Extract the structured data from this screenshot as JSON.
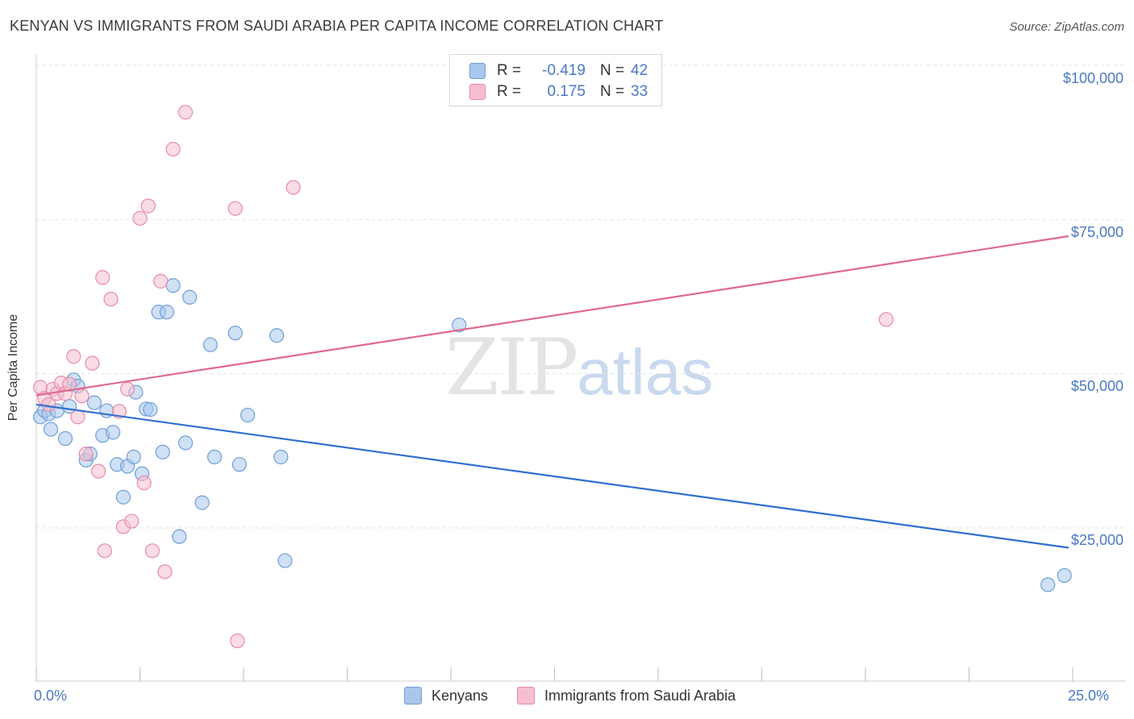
{
  "title": "KENYAN VS IMMIGRANTS FROM SAUDI ARABIA PER CAPITA INCOME CORRELATION CHART",
  "source": "Source: ZipAtlas.com",
  "watermark": {
    "zip": "ZIP",
    "atlas": "atlas"
  },
  "legend_top": [
    {
      "r_label": "R =",
      "r_value": "-0.419",
      "n_label": "N =",
      "n_value": "42",
      "color": "#a9c6ec",
      "border": "#6f9fd8"
    },
    {
      "r_label": "R =",
      "r_value": "0.175",
      "n_label": "N =",
      "n_value": "33",
      "color": "#f6bfd0",
      "border": "#e98aa9"
    }
  ],
  "legend_bottom": [
    {
      "label": "Kenyans",
      "color": "#a9c6ec",
      "border": "#6f9fd8"
    },
    {
      "label": "Immigrants from Saudi Arabia",
      "color": "#f6bfd0",
      "border": "#e98aa9"
    }
  ],
  "chart_data": {
    "type": "scatter",
    "title": "KENYAN VS IMMIGRANTS FROM SAUDI ARABIA PER CAPITA INCOME CORRELATION CHART",
    "xlabel": "",
    "ylabel": "Per Capita Income",
    "xlim": [
      0,
      25
    ],
    "ylim": [
      0,
      105000
    ],
    "x_ticks": [
      "0.0%",
      "25.0%"
    ],
    "y_ticks": [
      {
        "value": 25000,
        "label": "$25,000"
      },
      {
        "value": 50000,
        "label": "$50,000"
      },
      {
        "value": 75000,
        "label": "$75,000"
      },
      {
        "value": 100000,
        "label": "$100,000"
      }
    ],
    "grid": true,
    "series": [
      {
        "name": "Kenyans",
        "color": "#6f9fd8",
        "fill": "#a9c6ec",
        "trend": {
          "x": [
            0,
            24.9
          ],
          "y": [
            45000,
            21800
          ],
          "color": "#2f6fd0"
        },
        "points": [
          [
            0.1,
            43000
          ],
          [
            0.2,
            44000
          ],
          [
            0.3,
            43500
          ],
          [
            0.35,
            41000
          ],
          [
            0.5,
            44000
          ],
          [
            0.7,
            39500
          ],
          [
            0.8,
            44700
          ],
          [
            0.9,
            49000
          ],
          [
            1.0,
            48000
          ],
          [
            1.2,
            36000
          ],
          [
            1.3,
            37000
          ],
          [
            1.4,
            45300
          ],
          [
            1.6,
            40000
          ],
          [
            1.7,
            44000
          ],
          [
            1.85,
            40500
          ],
          [
            1.95,
            35300
          ],
          [
            2.1,
            30000
          ],
          [
            2.2,
            35000
          ],
          [
            2.35,
            36500
          ],
          [
            2.4,
            47000
          ],
          [
            2.55,
            33800
          ],
          [
            2.65,
            44300
          ],
          [
            2.75,
            44200
          ],
          [
            2.95,
            60000
          ],
          [
            3.05,
            37300
          ],
          [
            3.15,
            60000
          ],
          [
            3.3,
            64300
          ],
          [
            3.45,
            23600
          ],
          [
            3.6,
            38800
          ],
          [
            3.7,
            62400
          ],
          [
            4.0,
            29100
          ],
          [
            4.2,
            54700
          ],
          [
            4.3,
            36500
          ],
          [
            4.8,
            56600
          ],
          [
            4.9,
            35300
          ],
          [
            5.1,
            43300
          ],
          [
            5.8,
            56200
          ],
          [
            5.9,
            36500
          ],
          [
            6.0,
            19700
          ],
          [
            10.2,
            57900
          ],
          [
            24.4,
            15800
          ],
          [
            24.8,
            17300
          ]
        ]
      },
      {
        "name": "Immigrants from Saudi Arabia",
        "color": "#e98aa9",
        "fill": "#f6bfd0",
        "trend": {
          "x": [
            0,
            24.9
          ],
          "y": [
            46500,
            72300
          ],
          "color": "#e0688f"
        },
        "points": [
          [
            0.1,
            47800
          ],
          [
            0.2,
            46000
          ],
          [
            0.3,
            45000
          ],
          [
            0.4,
            47500
          ],
          [
            0.5,
            46800
          ],
          [
            0.6,
            48500
          ],
          [
            0.7,
            46800
          ],
          [
            0.8,
            48300
          ],
          [
            0.9,
            52800
          ],
          [
            1.0,
            43000
          ],
          [
            1.1,
            46400
          ],
          [
            1.2,
            37000
          ],
          [
            1.35,
            51700
          ],
          [
            1.5,
            34200
          ],
          [
            1.6,
            65600
          ],
          [
            1.65,
            21300
          ],
          [
            1.8,
            62100
          ],
          [
            2.0,
            43900
          ],
          [
            2.1,
            25200
          ],
          [
            2.2,
            47500
          ],
          [
            2.3,
            26100
          ],
          [
            2.5,
            75200
          ],
          [
            2.6,
            32300
          ],
          [
            2.7,
            77200
          ],
          [
            2.8,
            21300
          ],
          [
            3.0,
            65000
          ],
          [
            3.1,
            17900
          ],
          [
            3.3,
            86400
          ],
          [
            3.6,
            92400
          ],
          [
            4.8,
            76800
          ],
          [
            4.85,
            6700
          ],
          [
            6.2,
            80200
          ],
          [
            20.5,
            58800
          ]
        ]
      }
    ]
  }
}
